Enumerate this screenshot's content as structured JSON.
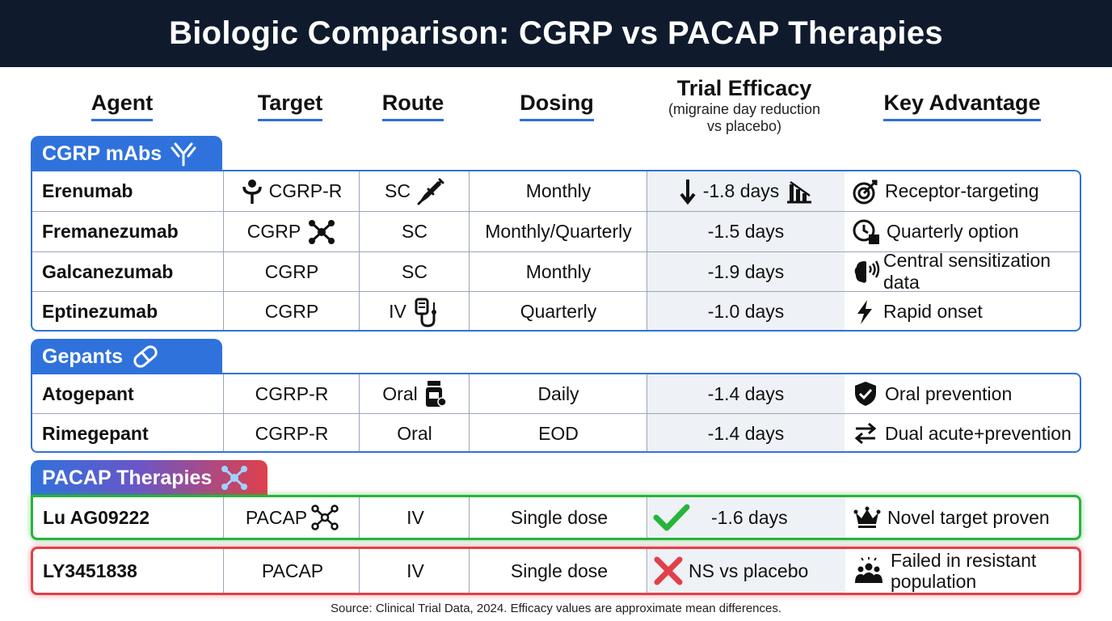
{
  "title": "Biologic Comparison: CGRP vs PACAP Therapies",
  "columns": {
    "agent": "Agent",
    "target": "Target",
    "route": "Route",
    "dosing": "Dosing",
    "efficacy": "Trial Efficacy",
    "efficacy_sub1": "(migraine day reduction",
    "efficacy_sub2": "vs placebo)",
    "advantage": "Key Advantage"
  },
  "groups": {
    "cgrp": {
      "label": "CGRP mAbs",
      "rows": [
        {
          "agent": "Erenumab",
          "target": "CGRP-R",
          "route": "SC",
          "dosing": "Monthly",
          "efficacy": "-1.8 days",
          "advantage": "Receptor-targeting"
        },
        {
          "agent": "Fremanezumab",
          "target": "CGRP",
          "route": "SC",
          "dosing": "Monthly/Quarterly",
          "efficacy": "-1.5 days",
          "advantage": "Quarterly option"
        },
        {
          "agent": "Galcanezumab",
          "target": "CGRP",
          "route": "SC",
          "dosing": "Monthly",
          "efficacy": "-1.9 days",
          "advantage": "Central sensitization data"
        },
        {
          "agent": "Eptinezumab",
          "target": "CGRP",
          "route": "IV",
          "dosing": "Quarterly",
          "efficacy": "-1.0 days",
          "advantage": "Rapid onset"
        }
      ]
    },
    "gepants": {
      "label": "Gepants",
      "rows": [
        {
          "agent": "Atogepant",
          "target": "CGRP-R",
          "route": "Oral",
          "dosing": "Daily",
          "efficacy": "-1.4 days",
          "advantage": "Oral prevention"
        },
        {
          "agent": "Rimegepant",
          "target": "CGRP-R",
          "route": "Oral",
          "dosing": "EOD",
          "efficacy": "-1.4 days",
          "advantage": "Dual acute+prevention"
        }
      ]
    },
    "pacap": {
      "label": "PACAP Therapies",
      "rows": [
        {
          "agent": "Lu AG09222",
          "target": "PACAP",
          "route": "IV",
          "dosing": "Single dose",
          "efficacy": "-1.6 days",
          "advantage": "Novel target proven"
        },
        {
          "agent": "LY3451838",
          "target": "PACAP",
          "route": "IV",
          "dosing": "Single dose",
          "efficacy": "NS vs placebo",
          "advantage_line1": "Failed in resistant",
          "advantage_line2": "population"
        }
      ]
    }
  },
  "footer": "Source: Clinical Trial Data, 2024. Efficacy values are approximate mean differences.",
  "colors": {
    "header_bg": "#0f1b2d",
    "accent_blue": "#2f72dc",
    "success_green": "#27b43a",
    "fail_red": "#e0404a"
  }
}
